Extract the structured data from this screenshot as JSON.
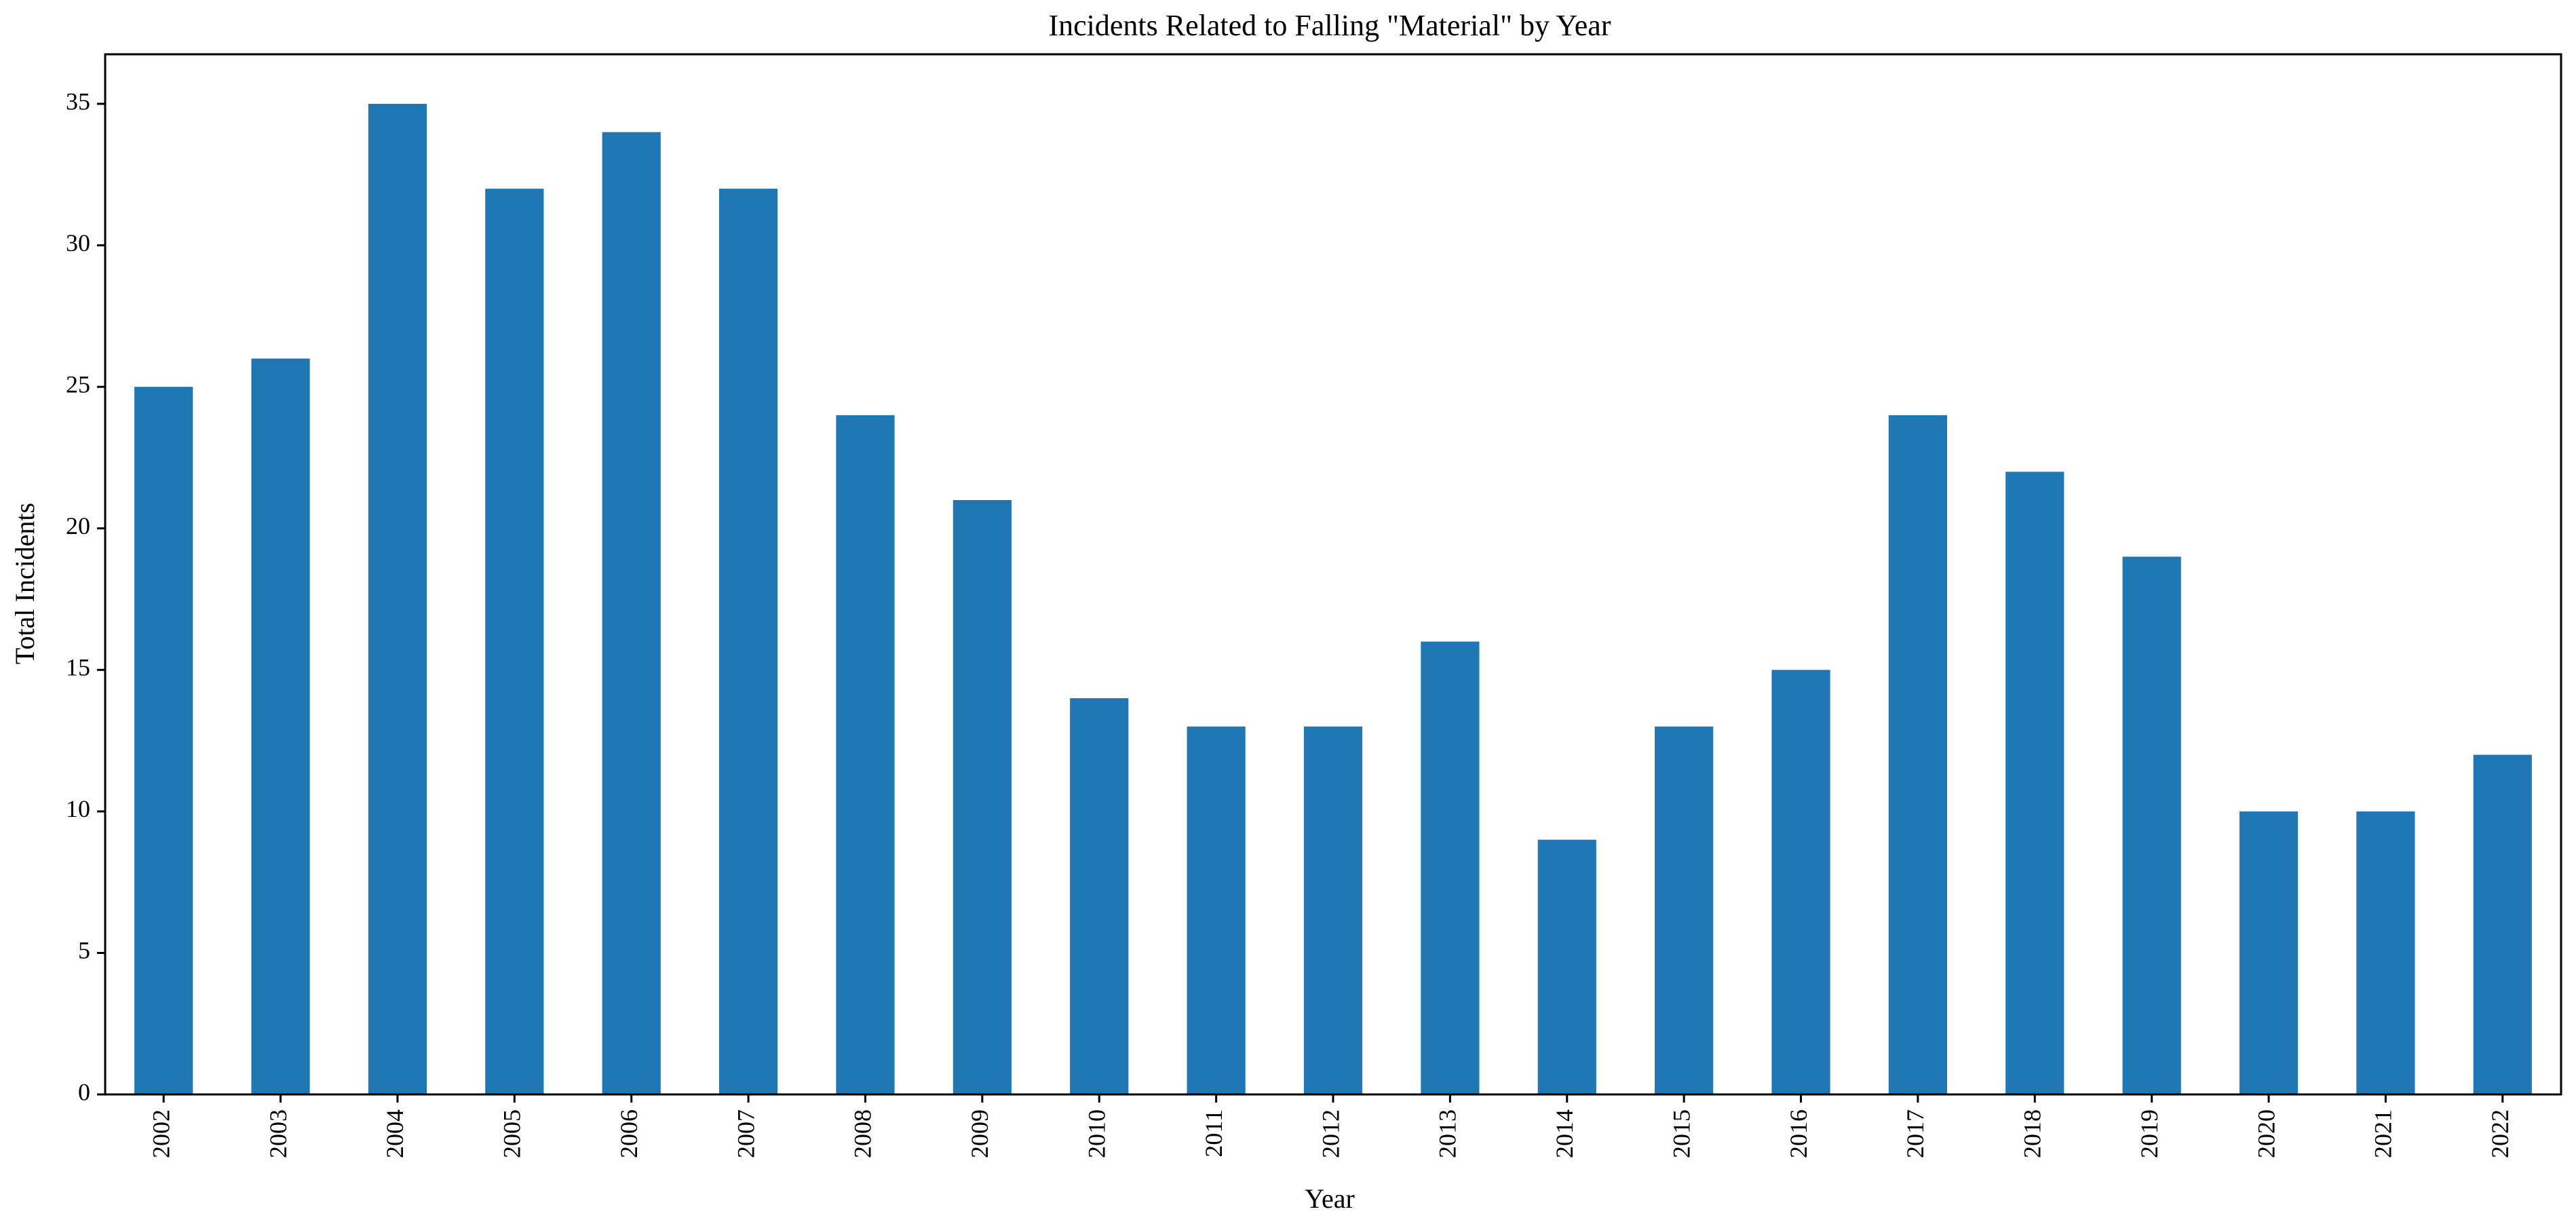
{
  "chart_data": {
    "type": "bar",
    "title": "Incidents Related to Falling \"Material\" by Year",
    "xlabel": "Year",
    "ylabel": "Total Incidents",
    "categories": [
      "2002",
      "2003",
      "2004",
      "2005",
      "2006",
      "2007",
      "2008",
      "2009",
      "2010",
      "2011",
      "2012",
      "2013",
      "2014",
      "2015",
      "2016",
      "2017",
      "2018",
      "2019",
      "2020",
      "2021",
      "2022"
    ],
    "values": [
      25,
      26,
      35,
      32,
      34,
      32,
      24,
      21,
      14,
      13,
      13,
      16,
      9,
      13,
      15,
      24,
      22,
      19,
      10,
      10,
      12
    ],
    "ylim": [
      0,
      36.75
    ],
    "yticks": [
      0,
      5,
      10,
      15,
      20,
      25,
      30,
      35
    ],
    "bar_color": "#1f77b4",
    "grid": false,
    "legend": "none"
  }
}
